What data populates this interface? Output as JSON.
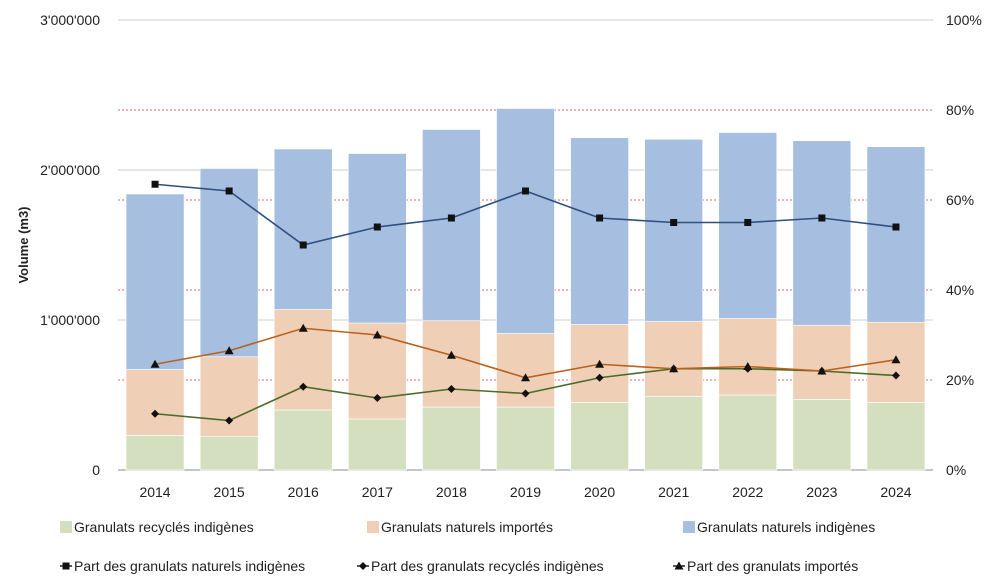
{
  "chart_data": {
    "type": "bar",
    "stacked": true,
    "categories": [
      "2014",
      "2015",
      "2016",
      "2017",
      "2018",
      "2019",
      "2020",
      "2021",
      "2022",
      "2023",
      "2024"
    ],
    "ylabel": "Volume (m3)",
    "ylim": [
      0,
      3000000
    ],
    "y_ticks": [
      0,
      1000000,
      2000000,
      3000000
    ],
    "y_tick_labels": [
      "0",
      "1'000'000",
      "2'000'000",
      "3'000'000"
    ],
    "y2lim": [
      0,
      100
    ],
    "y2_ticks": [
      0,
      20,
      40,
      60,
      80,
      100
    ],
    "y2_tick_labels": [
      "0%",
      "20%",
      "40%",
      "60%",
      "80%",
      "100%"
    ],
    "y2_reference_lines": [
      20,
      40,
      60,
      80
    ],
    "legend_position": "bottom",
    "bar_series": [
      {
        "name": "Granulats recyclés indigènes",
        "color": "#d4dfc0",
        "values": [
          230000,
          225000,
          400000,
          340000,
          420000,
          420000,
          450000,
          490000,
          500000,
          470000,
          450000
        ]
      },
      {
        "name": "Granulats naturels importés",
        "color": "#f0cfb7",
        "values": [
          440000,
          530000,
          670000,
          640000,
          575000,
          490000,
          520000,
          500000,
          510000,
          495000,
          535000
        ]
      },
      {
        "name": "Granulats naturels indigènes",
        "color": "#a6bedf",
        "values": [
          1170000,
          1255000,
          1070000,
          1130000,
          1275000,
          1500000,
          1245000,
          1215000,
          1240000,
          1230000,
          1170000
        ]
      }
    ],
    "line_series": [
      {
        "name": "Part des granulats naturels indigènes",
        "marker": "square",
        "color": "#2f4f7f",
        "values": [
          63.5,
          62,
          50,
          54,
          56,
          62,
          56,
          55,
          55,
          56,
          54
        ]
      },
      {
        "name": "Part des granulats recyclés indigènes",
        "marker": "diamond",
        "color": "#4a6b2a",
        "values": [
          12.5,
          11,
          18.5,
          16,
          18,
          17,
          20.5,
          22.5,
          22.5,
          22,
          21
        ]
      },
      {
        "name": "Part des granulats importés",
        "marker": "triangle",
        "color": "#b8621e",
        "values": [
          23.5,
          26.5,
          31.5,
          30,
          25.5,
          20.5,
          23.5,
          22.5,
          23,
          22,
          24.5
        ]
      }
    ]
  }
}
